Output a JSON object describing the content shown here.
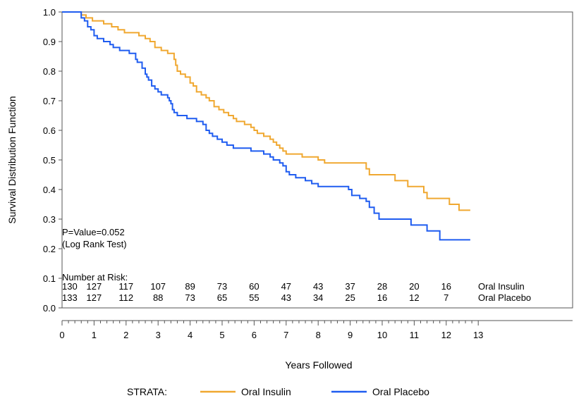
{
  "chart_data": {
    "type": "line",
    "step": true,
    "xlabel": "Years Followed",
    "ylabel": "Survival Distribution Function",
    "xlim": [
      0,
      13
    ],
    "ylim": [
      0.0,
      1.0
    ],
    "x_ticks": [
      "0",
      "1",
      "2",
      "3",
      "4",
      "5",
      "6",
      "7",
      "8",
      "9",
      "10",
      "11",
      "12",
      "13"
    ],
    "y_ticks": [
      "0.0",
      "0.1",
      "0.2",
      "0.3",
      "0.4",
      "0.5",
      "0.6",
      "0.7",
      "0.8",
      "0.9",
      "1.0"
    ],
    "grid": false,
    "annotation": {
      "pvalue": "P=Value=0.052",
      "test": "(Log Rank Test)"
    },
    "risk_table": {
      "title": "Number at Risk:",
      "times": [
        0,
        1,
        2,
        3,
        4,
        5,
        6,
        7,
        8,
        9,
        10,
        11,
        12
      ],
      "rows": [
        {
          "label": "Oral Insulin",
          "values": [
            "130",
            "127",
            "117",
            "107",
            "89",
            "73",
            "60",
            "47",
            "43",
            "37",
            "28",
            "20",
            "16"
          ]
        },
        {
          "label": "Oral Placebo",
          "values": [
            "133",
            "127",
            "112",
            "88",
            "73",
            "65",
            "55",
            "43",
            "34",
            "25",
            "16",
            "12",
            "7"
          ]
        }
      ]
    },
    "legend": {
      "title": "STRATA:",
      "position": "bottom"
    },
    "series": [
      {
        "name": "Oral Insulin",
        "color": "#f0a830",
        "points": [
          [
            0,
            1.0
          ],
          [
            0.55,
            1.0
          ],
          [
            0.6,
            0.99
          ],
          [
            0.75,
            0.98
          ],
          [
            0.95,
            0.97
          ],
          [
            1.3,
            0.96
          ],
          [
            1.55,
            0.95
          ],
          [
            1.75,
            0.94
          ],
          [
            1.95,
            0.93
          ],
          [
            2.4,
            0.92
          ],
          [
            2.6,
            0.91
          ],
          [
            2.75,
            0.9
          ],
          [
            2.9,
            0.88
          ],
          [
            3.1,
            0.87
          ],
          [
            3.3,
            0.86
          ],
          [
            3.5,
            0.84
          ],
          [
            3.55,
            0.82
          ],
          [
            3.6,
            0.8
          ],
          [
            3.7,
            0.79
          ],
          [
            3.85,
            0.78
          ],
          [
            4.0,
            0.76
          ],
          [
            4.1,
            0.75
          ],
          [
            4.2,
            0.73
          ],
          [
            4.35,
            0.72
          ],
          [
            4.5,
            0.71
          ],
          [
            4.6,
            0.7
          ],
          [
            4.75,
            0.68
          ],
          [
            4.9,
            0.67
          ],
          [
            5.05,
            0.66
          ],
          [
            5.2,
            0.65
          ],
          [
            5.35,
            0.64
          ],
          [
            5.45,
            0.63
          ],
          [
            5.7,
            0.62
          ],
          [
            5.9,
            0.61
          ],
          [
            6.0,
            0.6
          ],
          [
            6.1,
            0.59
          ],
          [
            6.3,
            0.58
          ],
          [
            6.5,
            0.57
          ],
          [
            6.6,
            0.56
          ],
          [
            6.7,
            0.55
          ],
          [
            6.8,
            0.54
          ],
          [
            6.9,
            0.53
          ],
          [
            7.0,
            0.52
          ],
          [
            7.5,
            0.51
          ],
          [
            8.0,
            0.5
          ],
          [
            8.2,
            0.49
          ],
          [
            9.5,
            0.47
          ],
          [
            9.6,
            0.45
          ],
          [
            10.4,
            0.43
          ],
          [
            10.8,
            0.41
          ],
          [
            11.3,
            0.39
          ],
          [
            11.4,
            0.37
          ],
          [
            12.1,
            0.35
          ],
          [
            12.4,
            0.33
          ],
          [
            12.75,
            0.33
          ]
        ]
      },
      {
        "name": "Oral Placebo",
        "color": "#1f5cf0",
        "points": [
          [
            0,
            1.0
          ],
          [
            0.5,
            1.0
          ],
          [
            0.6,
            0.98
          ],
          [
            0.7,
            0.97
          ],
          [
            0.8,
            0.95
          ],
          [
            0.9,
            0.94
          ],
          [
            1.0,
            0.92
          ],
          [
            1.1,
            0.91
          ],
          [
            1.3,
            0.9
          ],
          [
            1.5,
            0.89
          ],
          [
            1.6,
            0.88
          ],
          [
            1.8,
            0.87
          ],
          [
            2.1,
            0.86
          ],
          [
            2.3,
            0.84
          ],
          [
            2.35,
            0.83
          ],
          [
            2.5,
            0.81
          ],
          [
            2.6,
            0.79
          ],
          [
            2.65,
            0.78
          ],
          [
            2.7,
            0.77
          ],
          [
            2.8,
            0.75
          ],
          [
            2.9,
            0.74
          ],
          [
            3.0,
            0.73
          ],
          [
            3.1,
            0.72
          ],
          [
            3.3,
            0.71
          ],
          [
            3.35,
            0.7
          ],
          [
            3.4,
            0.69
          ],
          [
            3.45,
            0.67
          ],
          [
            3.5,
            0.66
          ],
          [
            3.6,
            0.65
          ],
          [
            3.9,
            0.64
          ],
          [
            4.2,
            0.63
          ],
          [
            4.4,
            0.62
          ],
          [
            4.5,
            0.6
          ],
          [
            4.6,
            0.59
          ],
          [
            4.7,
            0.58
          ],
          [
            4.85,
            0.57
          ],
          [
            5.0,
            0.56
          ],
          [
            5.15,
            0.55
          ],
          [
            5.35,
            0.54
          ],
          [
            5.9,
            0.53
          ],
          [
            6.3,
            0.52
          ],
          [
            6.5,
            0.51
          ],
          [
            6.6,
            0.5
          ],
          [
            6.8,
            0.49
          ],
          [
            6.9,
            0.48
          ],
          [
            7.0,
            0.46
          ],
          [
            7.1,
            0.45
          ],
          [
            7.3,
            0.44
          ],
          [
            7.6,
            0.43
          ],
          [
            7.8,
            0.42
          ],
          [
            8.0,
            0.41
          ],
          [
            8.95,
            0.4
          ],
          [
            9.05,
            0.38
          ],
          [
            9.3,
            0.37
          ],
          [
            9.5,
            0.36
          ],
          [
            9.6,
            0.34
          ],
          [
            9.75,
            0.32
          ],
          [
            9.9,
            0.3
          ],
          [
            10.9,
            0.28
          ],
          [
            11.4,
            0.26
          ],
          [
            11.8,
            0.23
          ],
          [
            12.75,
            0.23
          ]
        ]
      }
    ]
  }
}
